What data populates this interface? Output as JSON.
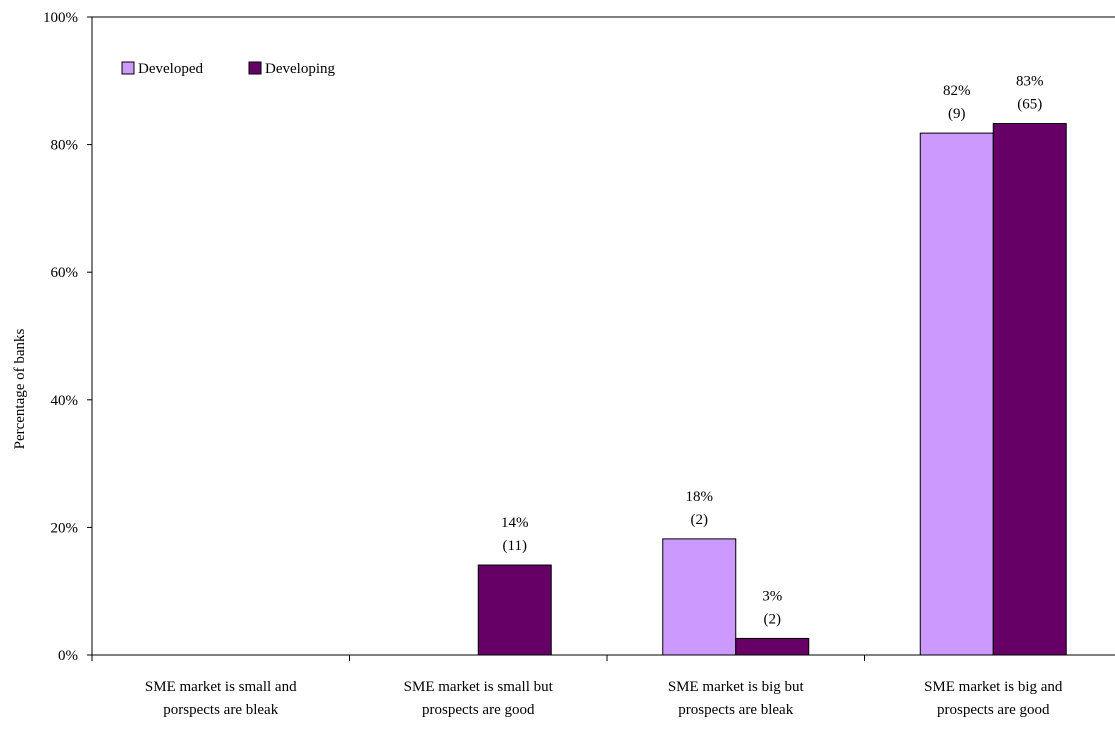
{
  "chart_data": {
    "type": "bar",
    "title": "",
    "xlabel": "",
    "ylabel": "Percentage of banks",
    "ylim": [
      0,
      100
    ],
    "y_ticks": [
      "0%",
      "20%",
      "40%",
      "60%",
      "80%",
      "100%"
    ],
    "y_tick_values": [
      0,
      20,
      40,
      60,
      80,
      100
    ],
    "categories": [
      [
        "SME market is small and",
        "porspects are bleak"
      ],
      [
        "SME market is small but",
        "prospects are good"
      ],
      [
        "SME market is big but",
        "prospects are bleak"
      ],
      [
        "SME market is big and",
        "prospects are good"
      ]
    ],
    "series": [
      {
        "name": "Developed",
        "color": "#cc99ff",
        "values": [
          0,
          0,
          18.2,
          81.8
        ],
        "labels": [
          null,
          null,
          "18%",
          "82%"
        ],
        "counts": [
          null,
          null,
          "(2)",
          "(9)"
        ]
      },
      {
        "name": "Developing",
        "color": "#660066",
        "values": [
          0,
          14.1,
          2.6,
          83.3
        ],
        "labels": [
          null,
          "14%",
          "3%",
          "83%"
        ],
        "counts": [
          null,
          "(11)",
          "(2)",
          "(65)"
        ]
      }
    ],
    "legend_position": "top-left",
    "grid": false
  }
}
